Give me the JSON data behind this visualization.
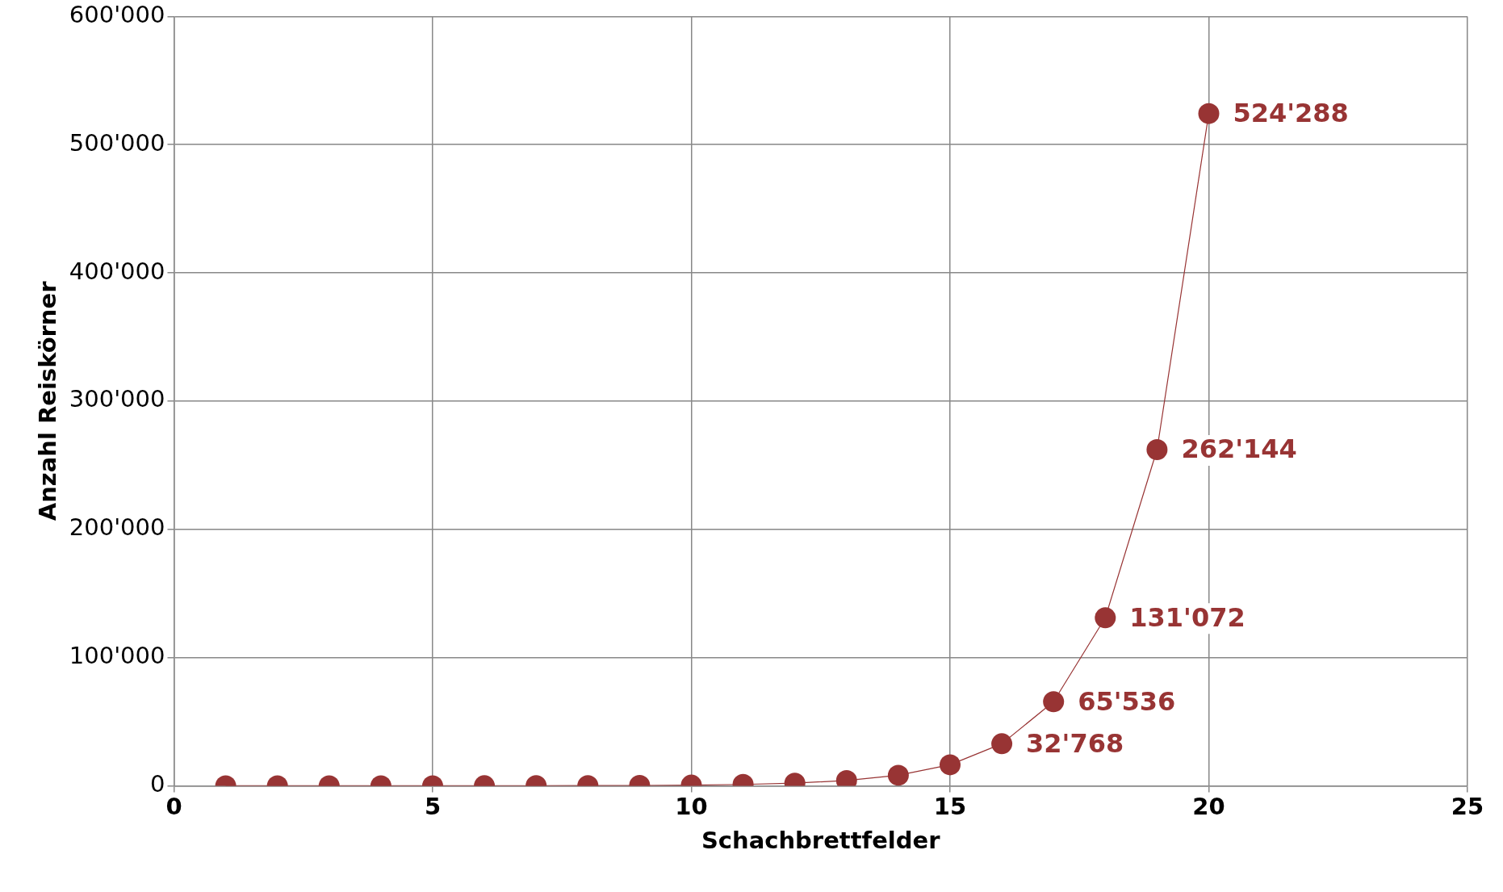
{
  "chart_data": {
    "type": "line",
    "xlabel": "Schachbrettfelder",
    "ylabel": "Anzahl Reiskörner",
    "x": [
      1,
      2,
      3,
      4,
      5,
      6,
      7,
      8,
      9,
      10,
      11,
      12,
      13,
      14,
      15,
      16,
      17,
      18,
      19,
      20
    ],
    "series": [
      {
        "color": "#983434",
        "values": [
          1,
          2,
          4,
          8,
          16,
          32,
          64,
          128,
          256,
          512,
          1024,
          2048,
          4096,
          8192,
          16384,
          32768,
          65536,
          131072,
          262144,
          524288
        ],
        "value_labels": [
          null,
          null,
          null,
          null,
          null,
          null,
          null,
          null,
          null,
          null,
          null,
          null,
          null,
          null,
          null,
          "32'768",
          "65'536",
          "131'072",
          "262'144",
          "524'288"
        ]
      }
    ],
    "xlim": [
      0,
      25
    ],
    "xticks": [
      0,
      5,
      10,
      15,
      20,
      25
    ],
    "ylim": [
      0,
      600000
    ],
    "yticks": [
      {
        "value": 0,
        "label": "0"
      },
      {
        "value": 100000,
        "label": "100'000"
      },
      {
        "value": 200000,
        "label": "200'000"
      },
      {
        "value": 300000,
        "label": "300'000"
      },
      {
        "value": 400000,
        "label": "400'000"
      },
      {
        "value": 500000,
        "label": "500'000"
      },
      {
        "value": 600000,
        "label": "600'000"
      }
    ],
    "grid": true,
    "legend": false,
    "marker": "circle",
    "line_style": "solid"
  }
}
